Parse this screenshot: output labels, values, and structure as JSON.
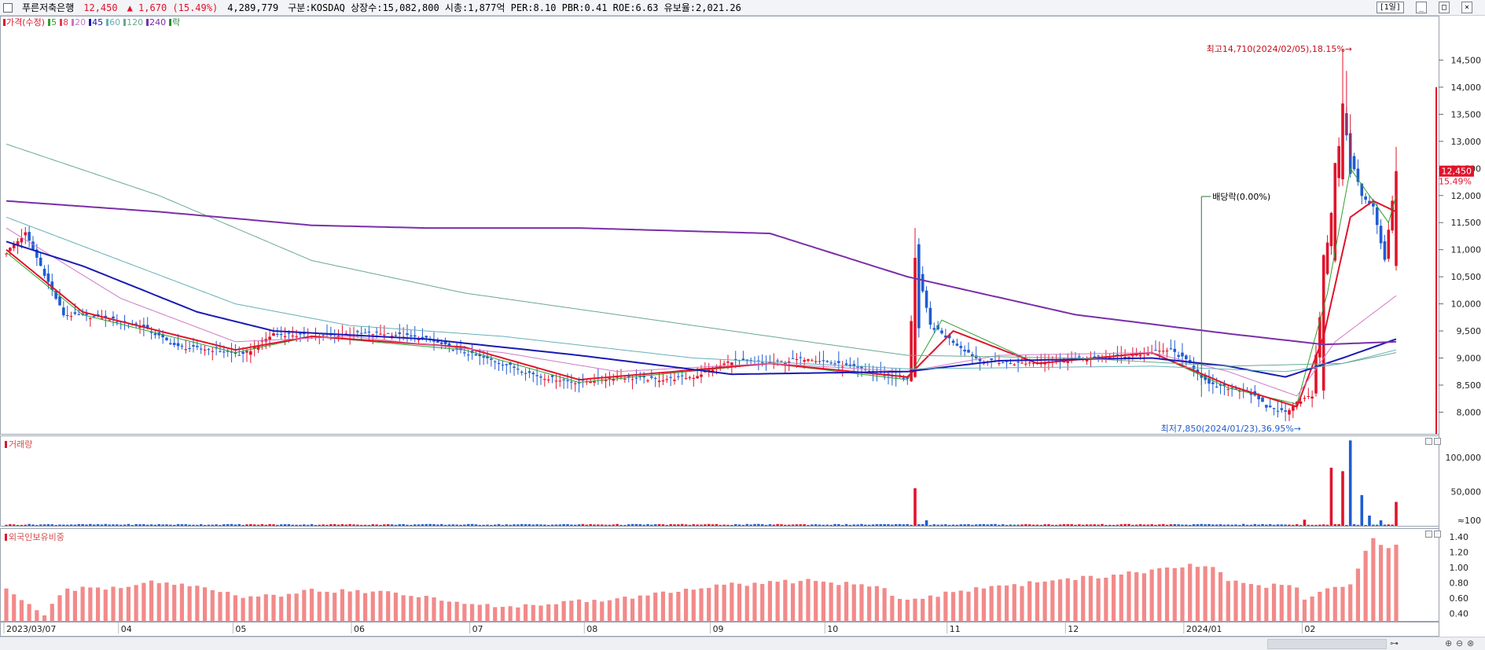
{
  "header": {
    "stock_name": "푸른저축은행",
    "price": "12,450",
    "change": "▲ 1,670 (15.49%)",
    "volume": "4,289,779",
    "info": "구분:KOSDAQ 상장수:15,082,800 시총:1,877억 PER:8.10 PBR:0.41 ROE:6.63 유보율:2,021.26",
    "period_button": "[1일]"
  },
  "legend": [
    {
      "label": "가격(수정)",
      "color": "#e0142b"
    },
    {
      "label": "5",
      "color": "#2ea02e"
    },
    {
      "label": "8",
      "color": "#e83a5a"
    },
    {
      "label": "20",
      "color": "#c878c8"
    },
    {
      "label": "45",
      "color": "#1a1ab4"
    },
    {
      "label": "60",
      "color": "#66b0b8"
    },
    {
      "label": "120",
      "color": "#6aa890"
    },
    {
      "label": "240",
      "color": "#7a2fa8"
    },
    {
      "label": "락",
      "color": "#2a8a3a"
    }
  ],
  "annotations": {
    "high": "최고14,710(2024/02/05),18.15%→",
    "low": "최저7,850(2024/01/23),36.95%→",
    "dividend": "배당락(0.00%)",
    "last_price": "12,450",
    "last_pct": "15.49%"
  },
  "panels": {
    "volume_label": "거래량",
    "foreign_label": "외국인보유비중"
  },
  "chart_data": {
    "type": "candlestick",
    "price_axis": {
      "ticks": [
        "8,000",
        "8,500",
        "9,000",
        "9,500",
        "10,000",
        "10,500",
        "11,000",
        "11,500",
        "12,000",
        "12,500",
        "13,000",
        "13,500",
        "14,000",
        "14,500"
      ],
      "ylim": [
        7600,
        15000
      ]
    },
    "volume_axis": {
      "ticks": [
        "≈100",
        "50,000",
        "100,000"
      ]
    },
    "foreign_axis": {
      "ticks": [
        "0.40",
        "0.60",
        "0.80",
        "1.00",
        "1.20",
        "1.40"
      ]
    },
    "x_labels": [
      "2023/03/07",
      "04",
      "05",
      "06",
      "07",
      "08",
      "09",
      "10",
      "11",
      "12",
      "2024/01",
      "02"
    ],
    "highlights": {
      "high": 14710,
      "low": 7850,
      "last_close": 12450
    },
    "price_anchors": [
      [
        0,
        10950
      ],
      [
        5,
        11300
      ],
      [
        15,
        9800
      ],
      [
        25,
        9750
      ],
      [
        35,
        9600
      ],
      [
        45,
        9200
      ],
      [
        55,
        9150
      ],
      [
        62,
        9050
      ],
      [
        70,
        9450
      ],
      [
        80,
        9400
      ],
      [
        90,
        9450
      ],
      [
        100,
        9450
      ],
      [
        110,
        9350
      ],
      [
        120,
        9100
      ],
      [
        130,
        8900
      ],
      [
        140,
        8650
      ],
      [
        150,
        8550
      ],
      [
        160,
        8650
      ],
      [
        170,
        8600
      ],
      [
        180,
        8650
      ],
      [
        190,
        8950
      ],
      [
        200,
        8900
      ],
      [
        210,
        9000
      ],
      [
        220,
        8850
      ],
      [
        230,
        8700
      ],
      [
        236,
        8600
      ],
      [
        238,
        10800
      ],
      [
        242,
        9600
      ],
      [
        248,
        9300
      ],
      [
        255,
        8950
      ],
      [
        265,
        8900
      ],
      [
        275,
        8950
      ],
      [
        285,
        9000
      ],
      [
        295,
        9050
      ],
      [
        305,
        9150
      ],
      [
        310,
        8900
      ],
      [
        315,
        8500
      ],
      [
        320,
        8450
      ],
      [
        325,
        8400
      ],
      [
        330,
        8100
      ],
      [
        335,
        8000
      ],
      [
        338,
        8200
      ],
      [
        342,
        8300
      ],
      [
        345,
        10500
      ],
      [
        348,
        12300
      ],
      [
        350,
        13500
      ],
      [
        352,
        12700
      ],
      [
        355,
        12000
      ],
      [
        358,
        11800
      ],
      [
        361,
        10800
      ],
      [
        364,
        12450
      ]
    ],
    "ma_anchors": {
      "ma5": [
        [
          0,
          10950
        ],
        [
          20,
          9800
        ],
        [
          60,
          9100
        ],
        [
          80,
          9400
        ],
        [
          120,
          9150
        ],
        [
          150,
          8550
        ],
        [
          200,
          8900
        ],
        [
          236,
          8600
        ],
        [
          245,
          9700
        ],
        [
          270,
          8900
        ],
        [
          300,
          9100
        ],
        [
          320,
          8450
        ],
        [
          338,
          8150
        ],
        [
          346,
          10200
        ],
        [
          352,
          12500
        ],
        [
          358,
          11900
        ],
        [
          362,
          11500
        ],
        [
          364,
          12000
        ]
      ],
      "ma8": [
        [
          0,
          11000
        ],
        [
          20,
          9850
        ],
        [
          60,
          9150
        ],
        [
          80,
          9400
        ],
        [
          120,
          9200
        ],
        [
          150,
          8600
        ],
        [
          200,
          8900
        ],
        [
          236,
          8650
        ],
        [
          248,
          9500
        ],
        [
          270,
          8900
        ],
        [
          300,
          9100
        ],
        [
          320,
          8500
        ],
        [
          338,
          8100
        ],
        [
          345,
          9400
        ],
        [
          352,
          11600
        ],
        [
          358,
          11900
        ],
        [
          364,
          11700
        ]
      ],
      "ma20": [
        [
          0,
          11400
        ],
        [
          30,
          10100
        ],
        [
          60,
          9300
        ],
        [
          90,
          9400
        ],
        [
          130,
          9100
        ],
        [
          160,
          8750
        ],
        [
          200,
          8900
        ],
        [
          236,
          8750
        ],
        [
          260,
          9050
        ],
        [
          300,
          9100
        ],
        [
          320,
          8750
        ],
        [
          338,
          8300
        ],
        [
          348,
          9300
        ],
        [
          364,
          10150
        ]
      ],
      "ma45": [
        [
          0,
          11150
        ],
        [
          20,
          10700
        ],
        [
          50,
          9850
        ],
        [
          70,
          9500
        ],
        [
          110,
          9350
        ],
        [
          150,
          9050
        ],
        [
          190,
          8700
        ],
        [
          236,
          8750
        ],
        [
          260,
          8950
        ],
        [
          300,
          9000
        ],
        [
          320,
          8850
        ],
        [
          335,
          8650
        ],
        [
          350,
          9000
        ],
        [
          364,
          9350
        ]
      ],
      "ma60": [
        [
          0,
          11600
        ],
        [
          30,
          10800
        ],
        [
          60,
          10000
        ],
        [
          90,
          9600
        ],
        [
          130,
          9400
        ],
        [
          180,
          9000
        ],
        [
          236,
          8800
        ],
        [
          300,
          8850
        ],
        [
          335,
          8750
        ],
        [
          350,
          8900
        ],
        [
          364,
          9150
        ]
      ],
      "ma120": [
        [
          0,
          12950
        ],
        [
          40,
          12000
        ],
        [
          80,
          10800
        ],
        [
          120,
          10200
        ],
        [
          170,
          9700
        ],
        [
          210,
          9300
        ],
        [
          236,
          9050
        ],
        [
          280,
          9000
        ],
        [
          320,
          8850
        ],
        [
          350,
          8900
        ],
        [
          364,
          9100
        ]
      ],
      "ma240": [
        [
          0,
          11900
        ],
        [
          40,
          11700
        ],
        [
          80,
          11450
        ],
        [
          110,
          11400
        ],
        [
          150,
          11400
        ],
        [
          200,
          11300
        ],
        [
          236,
          10500
        ],
        [
          280,
          9800
        ],
        [
          320,
          9450
        ],
        [
          345,
          9250
        ],
        [
          364,
          9300
        ]
      ]
    },
    "volume_spikes": [
      [
        238,
        55000
      ],
      [
        241,
        8000
      ],
      [
        340,
        9000
      ],
      [
        347,
        85000
      ],
      [
        350,
        80000
      ],
      [
        352,
        125000
      ],
      [
        355,
        45000
      ],
      [
        357,
        15000
      ],
      [
        360,
        8000
      ],
      [
        364,
        35000
      ]
    ],
    "foreign_anchors": [
      [
        0,
        0.75
      ],
      [
        5,
        0.55
      ],
      [
        10,
        0.35
      ],
      [
        15,
        0.72
      ],
      [
        30,
        0.72
      ],
      [
        40,
        0.82
      ],
      [
        55,
        0.7
      ],
      [
        65,
        0.6
      ],
      [
        80,
        0.7
      ],
      [
        100,
        0.68
      ],
      [
        115,
        0.58
      ],
      [
        130,
        0.48
      ],
      [
        150,
        0.55
      ],
      [
        170,
        0.65
      ],
      [
        190,
        0.78
      ],
      [
        210,
        0.82
      ],
      [
        228,
        0.75
      ],
      [
        236,
        0.55
      ],
      [
        245,
        0.65
      ],
      [
        260,
        0.75
      ],
      [
        280,
        0.85
      ],
      [
        300,
        0.95
      ],
      [
        315,
        1.05
      ],
      [
        320,
        0.85
      ],
      [
        330,
        0.75
      ],
      [
        337,
        0.8
      ],
      [
        340,
        0.6
      ],
      [
        346,
        0.7
      ],
      [
        352,
        0.8
      ],
      [
        356,
        1.2
      ],
      [
        358,
        1.38
      ],
      [
        361,
        1.28
      ],
      [
        364,
        1.28
      ]
    ]
  }
}
